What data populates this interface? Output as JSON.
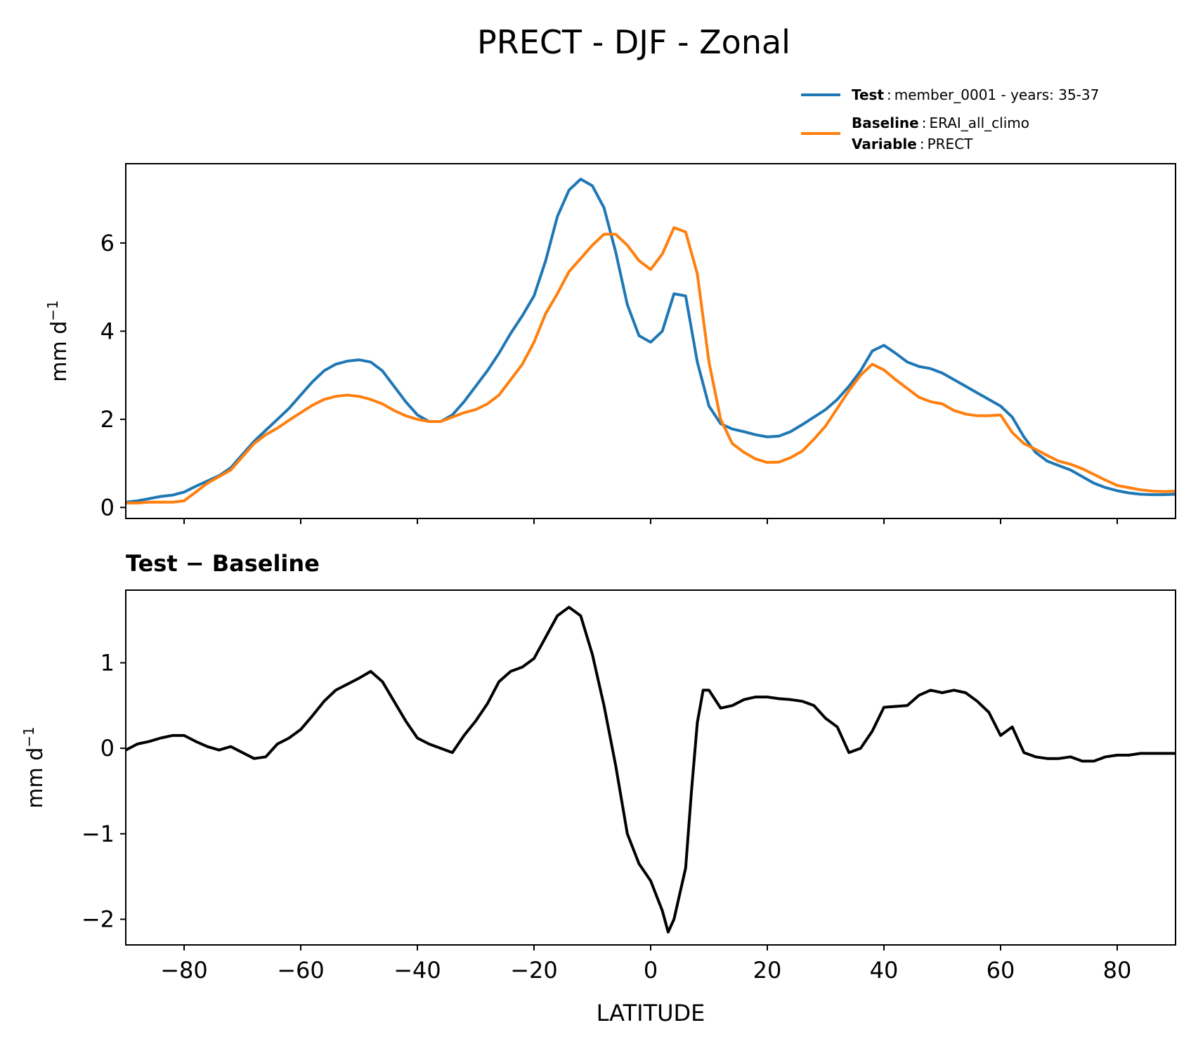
{
  "figure": {
    "title": "PRECT - DJF - Zonal"
  },
  "legend": {
    "test_label": "Test",
    "test_value": "member_0001 - years: 35-37",
    "baseline_label": "Baseline",
    "baseline_value": "ERAI_all_climo",
    "variable_label": "Variable",
    "variable_value": "PRECT",
    "separator": ":"
  },
  "chart_data": [
    {
      "type": "line",
      "title": "",
      "xlabel": "",
      "ylabel": "mm d",
      "ylabel_sup": "−1",
      "xlim": [
        -90,
        90
      ],
      "ylim": [
        -0.25,
        7.8
      ],
      "yticks": [
        0,
        2,
        4,
        6
      ],
      "ytick_labels": [
        "0",
        "2",
        "4",
        "6"
      ],
      "xticks": [
        -80,
        -60,
        -40,
        -20,
        0,
        20,
        40,
        60,
        80
      ],
      "grid": false,
      "x": [
        -90,
        -88,
        -86,
        -84,
        -82,
        -80,
        -78,
        -76,
        -74,
        -72,
        -70,
        -68,
        -66,
        -64,
        -62,
        -60,
        -58,
        -56,
        -54,
        -52,
        -50,
        -48,
        -46,
        -44,
        -42,
        -40,
        -38,
        -36,
        -34,
        -32,
        -30,
        -28,
        -26,
        -24,
        -22,
        -20,
        -18,
        -16,
        -14,
        -12,
        -10,
        -8,
        -6,
        -4,
        -2,
        0,
        2,
        4,
        6,
        8,
        10,
        12,
        14,
        16,
        18,
        20,
        22,
        24,
        26,
        28,
        30,
        32,
        34,
        36,
        38,
        40,
        42,
        44,
        46,
        48,
        50,
        52,
        54,
        56,
        58,
        60,
        62,
        64,
        66,
        68,
        70,
        72,
        74,
        76,
        78,
        80,
        82,
        84,
        86,
        88,
        90
      ],
      "series": [
        {
          "name": "Test",
          "color": "#1f77b4",
          "values": [
            0.12,
            0.15,
            0.2,
            0.25,
            0.28,
            0.35,
            0.48,
            0.6,
            0.72,
            0.9,
            1.2,
            1.5,
            1.75,
            2.0,
            2.25,
            2.55,
            2.85,
            3.1,
            3.25,
            3.32,
            3.35,
            3.3,
            3.1,
            2.75,
            2.4,
            2.1,
            1.95,
            1.95,
            2.1,
            2.4,
            2.75,
            3.1,
            3.5,
            3.95,
            4.35,
            4.8,
            5.6,
            6.6,
            7.2,
            7.45,
            7.3,
            6.8,
            5.8,
            4.6,
            3.9,
            3.75,
            4.0,
            4.85,
            4.8,
            3.3,
            2.3,
            1.9,
            1.78,
            1.72,
            1.65,
            1.6,
            1.62,
            1.72,
            1.88,
            2.05,
            2.22,
            2.45,
            2.75,
            3.1,
            3.55,
            3.68,
            3.5,
            3.3,
            3.2,
            3.15,
            3.05,
            2.9,
            2.75,
            2.6,
            2.45,
            2.3,
            2.05,
            1.6,
            1.25,
            1.05,
            0.95,
            0.85,
            0.7,
            0.55,
            0.45,
            0.38,
            0.33,
            0.3,
            0.29,
            0.29,
            0.3
          ]
        },
        {
          "name": "Baseline",
          "color": "#ff7f0e",
          "values": [
            0.1,
            0.1,
            0.12,
            0.12,
            0.12,
            0.15,
            0.35,
            0.55,
            0.7,
            0.85,
            1.15,
            1.45,
            1.65,
            1.8,
            1.98,
            2.15,
            2.32,
            2.45,
            2.52,
            2.55,
            2.52,
            2.45,
            2.35,
            2.2,
            2.08,
            2.0,
            1.95,
            1.95,
            2.05,
            2.15,
            2.22,
            2.35,
            2.55,
            2.9,
            3.25,
            3.75,
            4.4,
            4.85,
            5.35,
            5.65,
            5.95,
            6.2,
            6.2,
            5.95,
            5.6,
            5.4,
            5.75,
            6.35,
            6.25,
            5.3,
            3.3,
            2.0,
            1.45,
            1.25,
            1.1,
            1.02,
            1.03,
            1.13,
            1.28,
            1.55,
            1.85,
            2.25,
            2.65,
            3.0,
            3.25,
            3.12,
            2.9,
            2.7,
            2.5,
            2.4,
            2.35,
            2.2,
            2.12,
            2.08,
            2.08,
            2.1,
            1.7,
            1.45,
            1.32,
            1.18,
            1.05,
            0.98,
            0.88,
            0.75,
            0.62,
            0.5,
            0.45,
            0.4,
            0.37,
            0.36,
            0.37
          ]
        }
      ]
    },
    {
      "type": "line",
      "title": "Test − Baseline",
      "xlabel": "LATITUDE",
      "ylabel": "mm d",
      "ylabel_sup": "−1",
      "xlim": [
        -90,
        90
      ],
      "ylim": [
        -2.3,
        1.85
      ],
      "yticks": [
        -2,
        -1,
        0,
        1
      ],
      "ytick_labels": [
        "−2",
        "−1",
        "0",
        "1"
      ],
      "xticks": [
        -80,
        -60,
        -40,
        -20,
        0,
        20,
        40,
        60,
        80
      ],
      "xtick_labels": [
        "−80",
        "−60",
        "−40",
        "−20",
        "0",
        "20",
        "40",
        "60",
        "80"
      ],
      "grid": false,
      "series": [
        {
          "name": "Test − Baseline",
          "color": "#000000",
          "x": [
            -90,
            -88,
            -86,
            -84,
            -82,
            -80,
            -78,
            -76,
            -74,
            -72,
            -70,
            -68,
            -66,
            -64,
            -62,
            -60,
            -58,
            -56,
            -54,
            -52,
            -50,
            -48,
            -46,
            -44,
            -42,
            -40,
            -38,
            -36,
            -34,
            -32,
            -30,
            -28,
            -26,
            -24,
            -22,
            -20,
            -18,
            -16,
            -14,
            -12,
            -10,
            -8,
            -6,
            -4,
            -2,
            0,
            2,
            3,
            4,
            6,
            7,
            8,
            9,
            10,
            12,
            14,
            16,
            18,
            20,
            22,
            24,
            26,
            28,
            30,
            32,
            34,
            36,
            38,
            40,
            42,
            44,
            46,
            48,
            50,
            52,
            54,
            56,
            58,
            60,
            62,
            64,
            66,
            68,
            70,
            72,
            74,
            76,
            78,
            80,
            82,
            84,
            86,
            88,
            90
          ],
          "values": [
            -0.02,
            0.05,
            0.08,
            0.12,
            0.15,
            0.15,
            0.08,
            0.02,
            -0.02,
            0.02,
            -0.05,
            -0.12,
            -0.1,
            0.05,
            0.12,
            0.22,
            0.38,
            0.55,
            0.68,
            0.75,
            0.82,
            0.9,
            0.78,
            0.55,
            0.32,
            0.12,
            0.05,
            0.0,
            -0.05,
            0.15,
            0.32,
            0.52,
            0.78,
            0.9,
            0.95,
            1.05,
            1.3,
            1.55,
            1.65,
            1.55,
            1.1,
            0.5,
            -0.2,
            -1.0,
            -1.35,
            -1.55,
            -1.9,
            -2.15,
            -2.0,
            -1.4,
            -0.5,
            0.3,
            0.68,
            0.68,
            0.47,
            0.5,
            0.57,
            0.6,
            0.6,
            0.58,
            0.57,
            0.55,
            0.5,
            0.35,
            0.25,
            -0.05,
            0.0,
            0.2,
            0.48,
            0.49,
            0.5,
            0.62,
            0.68,
            0.65,
            0.68,
            0.65,
            0.55,
            0.42,
            0.15,
            0.25,
            -0.05,
            -0.1,
            -0.12,
            -0.12,
            -0.1,
            -0.15,
            -0.15,
            -0.1,
            -0.08,
            -0.08,
            -0.06,
            -0.06,
            -0.06,
            -0.06
          ]
        }
      ]
    }
  ]
}
